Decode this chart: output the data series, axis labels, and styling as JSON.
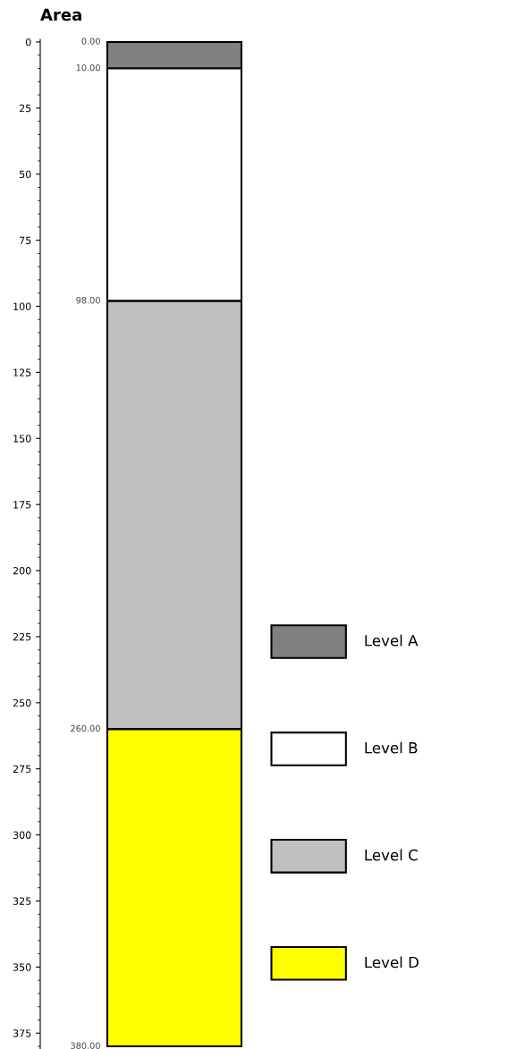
{
  "chart_data": {
    "type": "bar",
    "stacked": true,
    "title": "Area",
    "categories": [
      null
    ],
    "series": [
      {
        "name": "Level A",
        "color": "#808080",
        "values": [
          10
        ]
      },
      {
        "name": "Level B",
        "color": "#ffffff",
        "values": [
          88
        ]
      },
      {
        "name": "Level C",
        "color": "#c0c0c0",
        "values": [
          162
        ]
      },
      {
        "name": "Level D",
        "color": "#ffff00",
        "values": [
          120
        ]
      }
    ],
    "ylim": [
      381,
      -1
    ],
    "yticks": [
      0,
      25,
      50,
      75,
      100,
      125,
      150,
      175,
      200,
      225,
      250,
      275,
      300,
      325,
      350,
      375
    ],
    "annotations": [
      "0.00",
      "10.00",
      "98.00",
      "260.00",
      "380.00"
    ],
    "legend": "right",
    "grid": false
  }
}
